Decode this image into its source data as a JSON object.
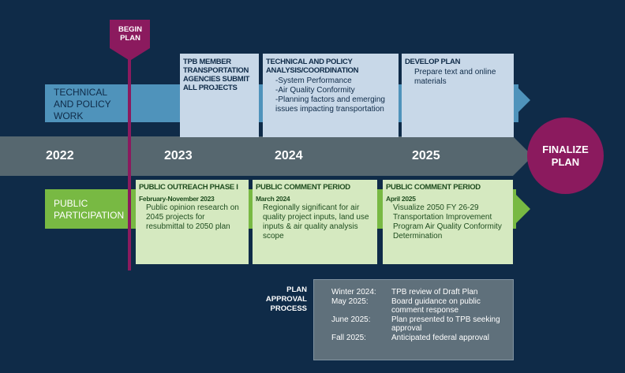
{
  "begin": {
    "label": "BEGIN PLAN",
    "color": "#8b1a5e"
  },
  "technical": {
    "label": "TECHNICAL AND POLICY WORK",
    "color": "#4f93bb",
    "boxes": [
      {
        "title": "TPB MEMBER TRANSPORTATION AGENCIES SUBMIT ALL PROJECTS",
        "lines": []
      },
      {
        "title": "TECHNICAL AND POLICY ANALYSIS/COORDINATION",
        "lines": [
          "-System Performance",
          "-Air Quality Conformity",
          "-Planning factors and emerging issues impacting transportation"
        ]
      },
      {
        "title": "DEVELOP PLAN",
        "lines": [
          "Prepare text and online materials"
        ]
      }
    ]
  },
  "timeline": {
    "years": [
      "2022",
      "2023",
      "2024",
      "2025"
    ],
    "color": "#56676f"
  },
  "finalize": {
    "label": "FINALIZE PLAN",
    "color": "#8b1a5e"
  },
  "public": {
    "label": "PUBLIC PARTICIPATION",
    "color": "#78b943",
    "boxes": [
      {
        "title": "PUBLIC OUTREACH PHASE I",
        "date": "February-November 2023",
        "text": "Public opinion research on 2045 projects for resubmittal to 2050 plan"
      },
      {
        "title": "PUBLIC COMMENT PERIOD",
        "date": "March 2024",
        "text": "Regionally significant for air quality project inputs, land use inputs & air quality analysis scope"
      },
      {
        "title": "PUBLIC COMMENT PERIOD",
        "date": "April 2025",
        "text": "Visualize 2050 FY 26-29 Transportation Improvement Program Air Quality Conformity Determination"
      }
    ]
  },
  "approval": {
    "label": "PLAN APPROVAL PROCESS",
    "rows": [
      {
        "when": "Winter 2024:",
        "what": "TPB review of Draft Plan"
      },
      {
        "when": "May 2025:",
        "what": "Board guidance on public comment response"
      },
      {
        "when": "June 2025:",
        "what": "Plan presented to TPB seeking approval"
      },
      {
        "when": "Fall 2025:",
        "what": "Anticipated federal approval"
      }
    ]
  }
}
